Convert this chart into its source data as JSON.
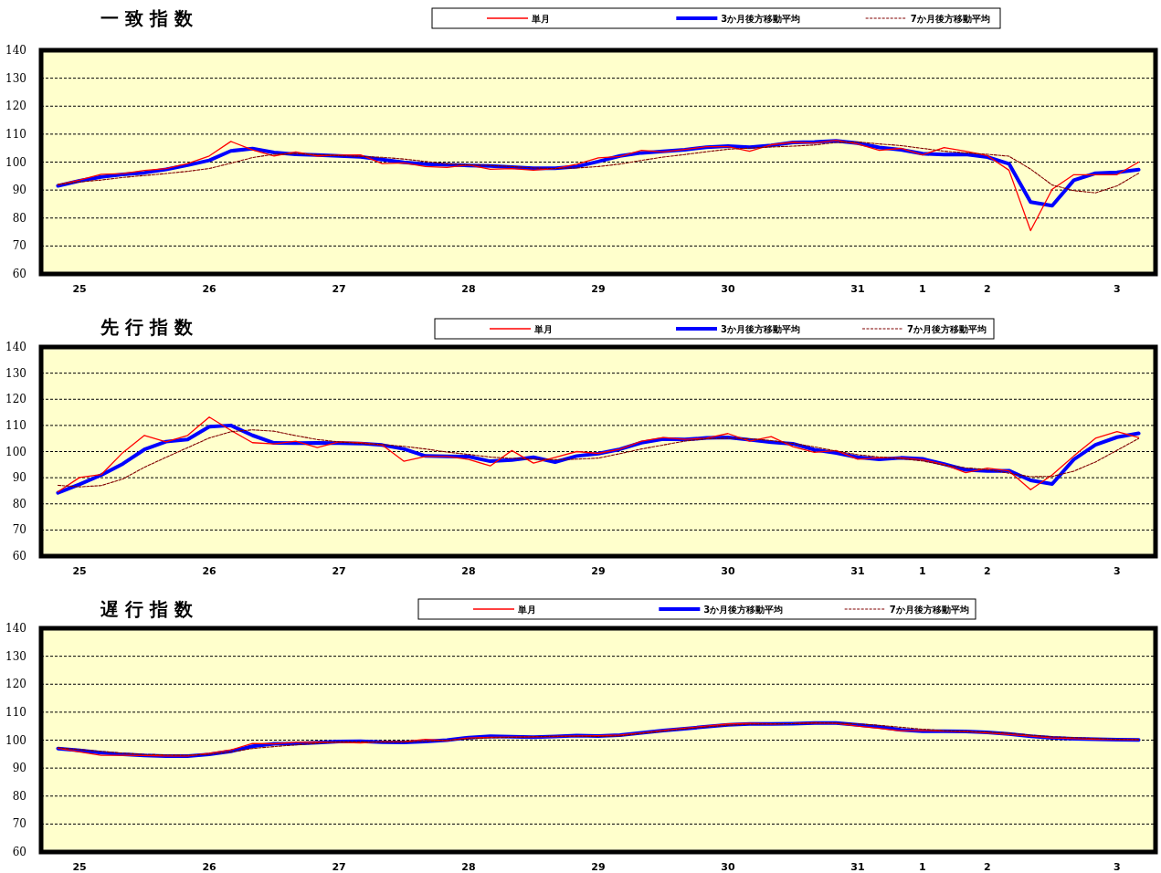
{
  "chart_data": [
    {
      "type": "line",
      "title": "一 致 指 数",
      "legend": "top",
      "grid": "y",
      "ylim": [
        60,
        140
      ],
      "yticks": [
        60,
        70,
        80,
        90,
        100,
        110,
        120,
        130,
        140
      ],
      "categories": [
        null,
        "25",
        null,
        null,
        null,
        null,
        null,
        "26",
        null,
        null,
        null,
        null,
        null,
        "27",
        null,
        null,
        null,
        null,
        null,
        "28",
        null,
        null,
        null,
        null,
        null,
        "29",
        null,
        null,
        null,
        null,
        null,
        "30",
        null,
        null,
        null,
        null,
        null,
        "31",
        null,
        null,
        "1",
        null,
        null,
        "2",
        null,
        null,
        null,
        null,
        null,
        "3",
        null
      ],
      "series": [
        {
          "name": "単月",
          "color": "#ff0000",
          "line_style": "solid",
          "values": [
            91.9,
            93.6,
            95.6,
            95.9,
            97,
            97.7,
            99.5,
            102.2,
            107.4,
            104.4,
            102.2,
            103.6,
            102.2,
            102.5,
            102.6,
            99.5,
            99.7,
            98.4,
            98.1,
            99,
            97.4,
            97.7,
            97.1,
            97.7,
            99.2,
            101.5,
            102,
            104.2,
            103.6,
            104.5,
            105.5,
            105.5,
            103.9,
            106.2,
            107.1,
            106.8,
            107.8,
            106.5,
            104.2,
            104.9,
            102.6,
            105.2,
            103.9,
            102.3,
            97.1,
            75.5,
            90.3,
            95.5,
            95.5,
            95.5,
            100
          ]
        },
        {
          "name": "3か月後方移動平均",
          "color": "#0000ff",
          "line_style": "solid",
          "values": [
            91.5,
            93.3,
            94.7,
            95.6,
            96.2,
            97.4,
            98.9,
            100.6,
            104,
            104.8,
            103.4,
            102.8,
            102.5,
            102.2,
            101.9,
            100.9,
            99.9,
            99.3,
            99,
            98.8,
            98.6,
            98.2,
            97.8,
            97.8,
            98.4,
            100.2,
            102.2,
            103.3,
            103.8,
            104.4,
            105.3,
            105.7,
            105.3,
            106,
            107,
            107.2,
            107.6,
            106.8,
            105.2,
            104.4,
            103,
            102.7,
            102.8,
            101.8,
            99.4,
            85.7,
            84.4,
            93.5,
            96,
            96.3,
            97.3
          ]
        },
        {
          "name": "7か月後方移動平均",
          "color": "#800000",
          "line_style": "dashed",
          "values": [
            92,
            92.9,
            93.6,
            94.5,
            95.2,
            95.9,
            96.7,
            97.7,
            99.6,
            101.6,
            102.8,
            103,
            102.7,
            102.3,
            102,
            101.7,
            101.1,
            100.2,
            99.4,
            99,
            98.8,
            98.4,
            97.9,
            97.7,
            97.9,
            98.4,
            99.3,
            100.6,
            101.8,
            102.7,
            103.7,
            104.6,
            105,
            105.4,
            105.7,
            106.1,
            107,
            107.2,
            106.5,
            105.9,
            104.9,
            103.9,
            103.3,
            102.8,
            102.1,
            97.5,
            91.8,
            89.8,
            89,
            91.5,
            96
          ]
        }
      ]
    },
    {
      "type": "line",
      "title": "先 行 指 数",
      "legend": "top",
      "grid": "y",
      "ylim": [
        60,
        140
      ],
      "yticks": [
        60,
        70,
        80,
        90,
        100,
        110,
        120,
        130,
        140
      ],
      "categories": [
        null,
        "25",
        null,
        null,
        null,
        null,
        null,
        "26",
        null,
        null,
        null,
        null,
        null,
        "27",
        null,
        null,
        null,
        null,
        null,
        "28",
        null,
        null,
        null,
        null,
        null,
        "29",
        null,
        null,
        null,
        null,
        null,
        "30",
        null,
        null,
        null,
        null,
        null,
        "31",
        null,
        null,
        "1",
        null,
        null,
        "2",
        null,
        null,
        null,
        null,
        null,
        "3",
        null
      ],
      "series": [
        {
          "name": "単月",
          "color": "#ff0000",
          "line_style": "solid",
          "values": [
            84.6,
            90.1,
            91.2,
            99.6,
            106.2,
            103.7,
            106.2,
            113.2,
            108.1,
            103.4,
            102.9,
            104,
            101.5,
            103.7,
            103.4,
            102.5,
            96.3,
            98.1,
            98.1,
            97,
            94.5,
            100.4,
            95.6,
            97.8,
            100,
            99.3,
            100.9,
            104,
            105.4,
            104.7,
            105.1,
            106.9,
            104,
            105.7,
            101.9,
            99.7,
            100.4,
            97.1,
            97.6,
            97.6,
            96.9,
            95.1,
            91.9,
            93.7,
            92.6,
            85.4,
            91.1,
            98.3,
            105.1,
            107.6,
            105.4
          ]
        },
        {
          "name": "3か月後方移動平均",
          "color": "#0000ff",
          "line_style": "solid",
          "values": [
            84.2,
            87.5,
            91,
            95.3,
            100.8,
            103.8,
            104.6,
            109.5,
            110,
            106.2,
            103.3,
            103.2,
            103.3,
            103.2,
            103.1,
            102.5,
            101,
            98.3,
            98.2,
            98.1,
            96.3,
            96.8,
            97.8,
            96,
            98.3,
            99.2,
            100.9,
            103.4,
            104.8,
            104.6,
            105.2,
            105.4,
            104.5,
            103.6,
            103,
            100.7,
            99.5,
            97.8,
            97,
            97.6,
            97.2,
            95.2,
            93,
            92.6,
            92.7,
            89,
            87.6,
            97,
            102.6,
            105.5,
            107
          ]
        },
        {
          "name": "7か月後方移動平均",
          "color": "#800000",
          "line_style": "dashed",
          "values": [
            87.1,
            86.5,
            87,
            89.5,
            94,
            97.8,
            101.5,
            105.2,
            107.6,
            108.3,
            107.8,
            106.1,
            104.6,
            103.7,
            103.1,
            102.7,
            102,
            101,
            99.8,
            98.9,
            97.9,
            97.4,
            97.1,
            96.9,
            97.1,
            97.5,
            99.2,
            101,
            102.5,
            104,
            104.9,
            105.1,
            104.9,
            104.2,
            103.1,
            101.8,
            100.2,
            98.8,
            97.9,
            97.3,
            96.4,
            94.8,
            93.8,
            93.1,
            91.7,
            90.4,
            90.5,
            92.5,
            96,
            100.5,
            105
          ]
        }
      ]
    },
    {
      "type": "line",
      "title": "遅 行 指 数",
      "legend": "top",
      "grid": "y",
      "ylim": [
        60,
        140
      ],
      "yticks": [
        60,
        70,
        80,
        90,
        100,
        110,
        120,
        130,
        140
      ],
      "categories": [
        null,
        "25",
        null,
        null,
        null,
        null,
        null,
        "26",
        null,
        null,
        null,
        null,
        null,
        "27",
        null,
        null,
        null,
        null,
        null,
        "28",
        null,
        null,
        null,
        null,
        null,
        "29",
        null,
        null,
        null,
        null,
        null,
        "30",
        null,
        null,
        null,
        null,
        null,
        "31",
        null,
        null,
        "1",
        null,
        null,
        "2",
        null,
        null,
        null,
        null,
        null,
        "3",
        null
      ],
      "series": [
        {
          "name": "単月",
          "color": "#ff0000",
          "line_style": "solid",
          "values": [
            97.1,
            95.8,
            94.6,
            94.6,
            94.5,
            94.3,
            94.3,
            95.3,
            96.5,
            98.8,
            98.7,
            99.2,
            99.3,
            99.2,
            99,
            99.5,
            99.5,
            100.3,
            99.8,
            100.8,
            101,
            101.1,
            101.2,
            101.3,
            101.5,
            101.6,
            101.8,
            102.6,
            103.5,
            104.3,
            105,
            105.8,
            106,
            105.8,
            105.9,
            106.2,
            106,
            105,
            104.2,
            103.3,
            103.5,
            103.2,
            103.1,
            102.6,
            102,
            101.4,
            100.8,
            100.5,
            100.3,
            100.2,
            100.1
          ]
        },
        {
          "name": "3か月後方移動平均",
          "color": "#0000ff",
          "line_style": "solid",
          "values": [
            97,
            96.3,
            95.5,
            94.9,
            94.5,
            94.3,
            94.3,
            94.9,
            96,
            97.8,
            98.7,
            98.8,
            99.1,
            99.5,
            99.6,
            99.3,
            99.2,
            99.5,
            100,
            100.9,
            101.4,
            101.2,
            101.1,
            101.3,
            101.6,
            101.5,
            101.8,
            102.6,
            103.4,
            104.1,
            104.8,
            105.5,
            105.8,
            105.8,
            105.9,
            106.1,
            106.1,
            105.5,
            104.7,
            103.7,
            103.2,
            103.2,
            103.1,
            102.8,
            102.2,
            101.4,
            100.8,
            100.5,
            100.3,
            100.2,
            100.1
          ]
        },
        {
          "name": "7か月後方移動平均",
          "color": "#800000",
          "line_style": "dashed",
          "values": [
            97.3,
            96.6,
            96,
            95.3,
            94.9,
            94.7,
            94.6,
            94.9,
            95.8,
            97,
            97.7,
            98.3,
            98.9,
            99.4,
            99.4,
            99.3,
            99.3,
            99.6,
            99.9,
            100.5,
            100.8,
            101,
            101.2,
            101.4,
            101.4,
            101.3,
            101.5,
            102.4,
            103.2,
            104,
            104.7,
            105.3,
            105.7,
            105.8,
            105.9,
            106.1,
            106.1,
            105.8,
            105.3,
            104.6,
            103.9,
            103.4,
            103.1,
            102.9,
            102.5,
            101.8,
            101.2,
            100.9,
            100.6,
            100.3,
            100.2
          ]
        }
      ]
    }
  ]
}
